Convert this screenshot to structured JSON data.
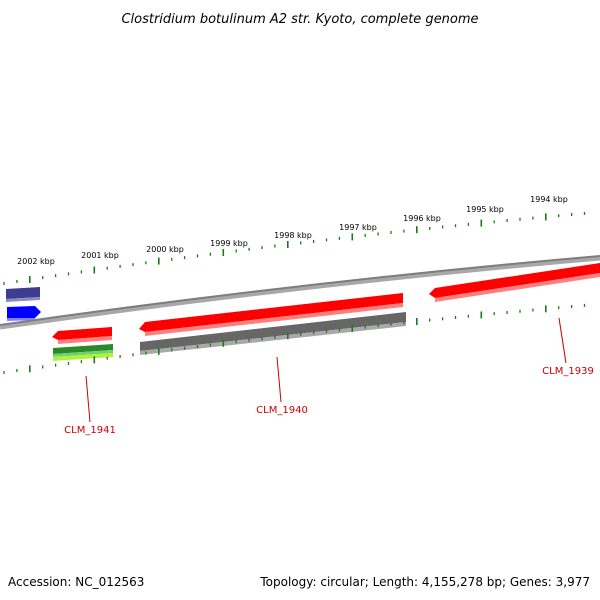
{
  "title": "Clostridium botulinum A2 str. Kyoto, complete genome",
  "scale_labels": [
    "2002 kbp",
    "2001 kbp",
    "2000 kbp",
    "1999 kbp",
    "1998 kbp",
    "1997 kbp",
    "1996 kbp",
    "1995 kbp",
    "1994 kbp"
  ],
  "gene_labels": [
    "CLM_1941",
    "CLM_1940",
    "CLM_1939"
  ],
  "footer": {
    "accession": "Accession: NC_012563",
    "summary": "Topology: circular; Length: 4,155,278 bp; Genes: 3,977"
  },
  "colors": {
    "tick": "#1a7a1a",
    "backbone": "#8c8c8c",
    "label": "#cc0000",
    "red_feature": "#ff0000",
    "gray_feature": "#666666",
    "blue_feature": "#0000ff",
    "navy_feature": "#3d3d8f",
    "green_feature": "#2a8a2a",
    "lime_feature": "#b5f03c"
  }
}
